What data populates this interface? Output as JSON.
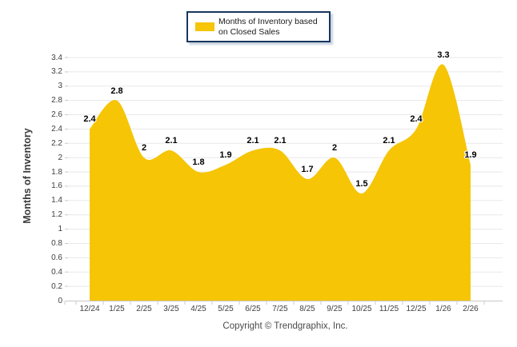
{
  "legend": {
    "line1": "Months of Inventory based",
    "line2": "on Closed Sales"
  },
  "chart_data": {
    "type": "area",
    "categories": [
      "12/24",
      "1/25",
      "2/25",
      "3/25",
      "4/25",
      "5/25",
      "6/25",
      "7/25",
      "8/25",
      "9/25",
      "10/25",
      "11/25",
      "12/25",
      "1/26",
      "2/26"
    ],
    "values": [
      2.4,
      2.8,
      2,
      2.1,
      1.8,
      1.9,
      2.1,
      2.1,
      1.7,
      2,
      1.5,
      2.1,
      2.4,
      3.3,
      1.9
    ],
    "title": "",
    "xlabel": "",
    "ylabel": "Months of Inventory",
    "ylim": [
      0,
      3.4
    ],
    "ytick_step": 0.2,
    "grid": true,
    "legend_position": "top",
    "legend_label": "Months of Inventory based on Closed Sales",
    "data_labels": true
  },
  "footer": {
    "copyright": "Copyright © Trendgraphix, Inc."
  },
  "colors": {
    "fill": "#F5C506",
    "legend_border": "#17375E",
    "grid": "#E8E8E8",
    "axis": "#C8C8C8",
    "tick_text": "#404040",
    "data_label": "#000000",
    "copyright_text": "#4A4A4A"
  }
}
